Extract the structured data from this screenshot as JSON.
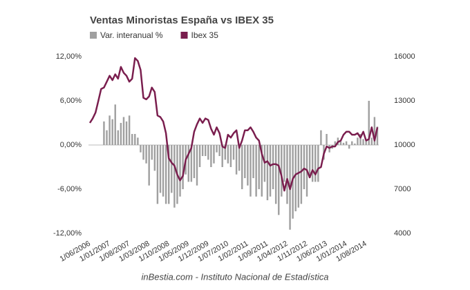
{
  "chart_data": {
    "type": "bar-line",
    "title": "Ventas Minoristas España vs IBEX 35",
    "source": "inBestia.com - Instituto Nacional de Estadística",
    "categories": [
      "1/06/2006",
      null,
      null,
      null,
      null,
      null,
      null,
      "1/01/2007",
      null,
      null,
      null,
      null,
      null,
      null,
      "1/08/2007",
      null,
      null,
      null,
      null,
      null,
      null,
      "1/03/2008",
      null,
      null,
      null,
      null,
      null,
      null,
      "1/10/2008",
      null,
      null,
      null,
      null,
      null,
      null,
      "1/05/2009",
      null,
      null,
      null,
      null,
      null,
      null,
      "1/12/2009",
      null,
      null,
      null,
      null,
      null,
      null,
      "1/07/2010",
      null,
      null,
      null,
      null,
      null,
      null,
      "1/02/2011",
      null,
      null,
      null,
      null,
      null,
      null,
      "1/09/2011",
      null,
      null,
      null,
      null,
      null,
      null,
      "1/04/2012",
      null,
      null,
      null,
      null,
      null,
      null,
      "1/11/2012",
      null,
      null,
      null,
      null,
      null,
      null,
      "1/06/2013",
      null,
      null,
      null,
      null,
      null,
      null,
      "1/01/2014",
      null,
      null,
      null,
      null,
      null,
      null,
      "1/08/2014",
      null,
      null,
      null,
      null
    ],
    "series": [
      {
        "name": "Var. interanual %",
        "type": "bar",
        "axis": "y",
        "color": "#a0a0a0",
        "values": [
          null,
          null,
          null,
          null,
          null,
          3.2,
          2,
          4,
          3.5,
          5.5,
          2,
          3,
          3.8,
          3.2,
          4,
          1.5,
          1.5,
          1,
          -1,
          -2,
          -2.5,
          -5.5,
          -2,
          -3.5,
          -8,
          -6.5,
          -7,
          -8,
          -8,
          -6.5,
          -8.5,
          -8,
          -7,
          -6,
          -4,
          -5,
          -5,
          -4.5,
          -5.5,
          -3,
          -1.5,
          -1.5,
          -2,
          -3,
          -2.5,
          -1,
          -1.5,
          -3,
          -2,
          -2.5,
          -3,
          -2,
          -4,
          -3.5,
          -6,
          -4.5,
          -5.5,
          -7,
          -4.5,
          -7,
          -6,
          -7,
          -5,
          -7.5,
          -7,
          -6,
          -8,
          -9.5,
          -7,
          -5,
          -8,
          -11.5,
          -10,
          -9,
          -8.5,
          -8,
          -6,
          -7,
          -4.5,
          -5,
          -5,
          -5,
          2,
          -2,
          1.5,
          -1,
          -0.5,
          0.5,
          1,
          0.5,
          0.3,
          0.5,
          -0.5,
          0.5,
          0.2,
          1,
          1.5,
          0.8,
          0.5,
          6,
          1,
          3.8,
          2.5
        ]
      },
      {
        "name": "Ibex 35",
        "type": "line",
        "axis": "y2",
        "color": "#7a1e4e",
        "values": [
          11500,
          11800,
          12200,
          13000,
          13800,
          13900,
          14300,
          14700,
          14400,
          14800,
          14500,
          15300,
          14900,
          14700,
          14300,
          14500,
          15900,
          15700,
          15100,
          13200,
          13100,
          13300,
          13900,
          13600,
          12000,
          11900,
          11600,
          10800,
          9100,
          8800,
          8600,
          8000,
          7600,
          7900,
          9000,
          9400,
          9800,
          10900,
          11400,
          11800,
          11500,
          11800,
          11700,
          11100,
          10700,
          11200,
          10800,
          9900,
          9800,
          10700,
          10500,
          10800,
          11000,
          9800,
          10300,
          11000,
          11000,
          11200,
          10900,
          10500,
          10300,
          9400,
          8800,
          8900,
          8600,
          8700,
          8700,
          8600,
          7900,
          6900,
          7700,
          7000,
          7700,
          8000,
          8100,
          8200,
          8400,
          8300,
          7800,
          8300,
          8000,
          8400,
          8500,
          9400,
          9900,
          9800,
          9900,
          9900,
          10200,
          10300,
          10700,
          10900,
          10900,
          10700,
          10700,
          10800,
          10500,
          10900,
          10300,
          10400,
          11200,
          10300,
          11200
        ]
      }
    ],
    "ylim": [
      -12,
      12
    ],
    "yticks": [
      {
        "value": 12,
        "label": "12,00%"
      },
      {
        "value": 6,
        "label": "6,00%"
      },
      {
        "value": 0,
        "label": "0,00%"
      },
      {
        "value": -6,
        "label": "-6,00%"
      },
      {
        "value": -12,
        "label": "-12,00%"
      }
    ],
    "y2lim": [
      4000,
      16000
    ],
    "y2ticks": [
      16000,
      13000,
      10000,
      7000,
      4000
    ]
  }
}
